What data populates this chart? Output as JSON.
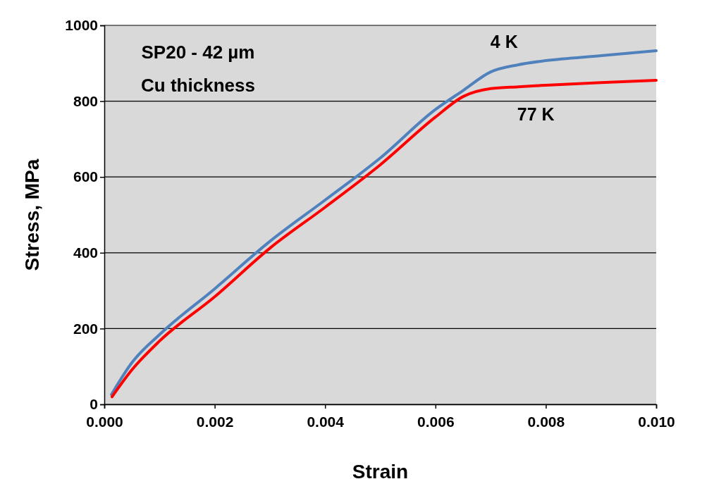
{
  "chart_data": {
    "type": "line",
    "xlabel": "Strain",
    "ylabel": "Stress, MPa",
    "annotations": [
      "SP20 - 42 µm",
      "Cu thickness"
    ],
    "xlim": [
      0,
      0.01
    ],
    "xticks": [
      {
        "value": 0,
        "label": "0.000"
      },
      {
        "value": 0.002,
        "label": "0.002"
      },
      {
        "value": 0.004,
        "label": "0.004"
      },
      {
        "value": 0.006,
        "label": "0.006"
      },
      {
        "value": 0.008,
        "label": "0.008"
      },
      {
        "value": 0.01,
        "label": "0.010"
      }
    ],
    "ylim": [
      0,
      1000
    ],
    "yticks": [
      0,
      200,
      400,
      600,
      800,
      1000
    ],
    "grid": "y",
    "line_style": "solid",
    "marker": "none",
    "series": [
      {
        "name": "4 K",
        "color": "#4f81bd",
        "x": [
          0.00013,
          0.0005,
          0.001,
          0.002,
          0.003,
          0.004,
          0.005,
          0.006,
          0.0065,
          0.007,
          0.0075,
          0.008,
          0.009,
          0.01
        ],
        "values": [
          26,
          110,
          184,
          305,
          430,
          539,
          650,
          778,
          828,
          877,
          896,
          907,
          920,
          933
        ]
      },
      {
        "name": "77 K",
        "color": "#ff0000",
        "x": [
          0.00014,
          0.0005,
          0.001,
          0.002,
          0.003,
          0.004,
          0.005,
          0.006,
          0.0065,
          0.007,
          0.0075,
          0.008,
          0.009,
          0.01
        ],
        "values": [
          20,
          91,
          167,
          284,
          412,
          520,
          632,
          758,
          812,
          833,
          838,
          842,
          849,
          855
        ]
      }
    ]
  }
}
